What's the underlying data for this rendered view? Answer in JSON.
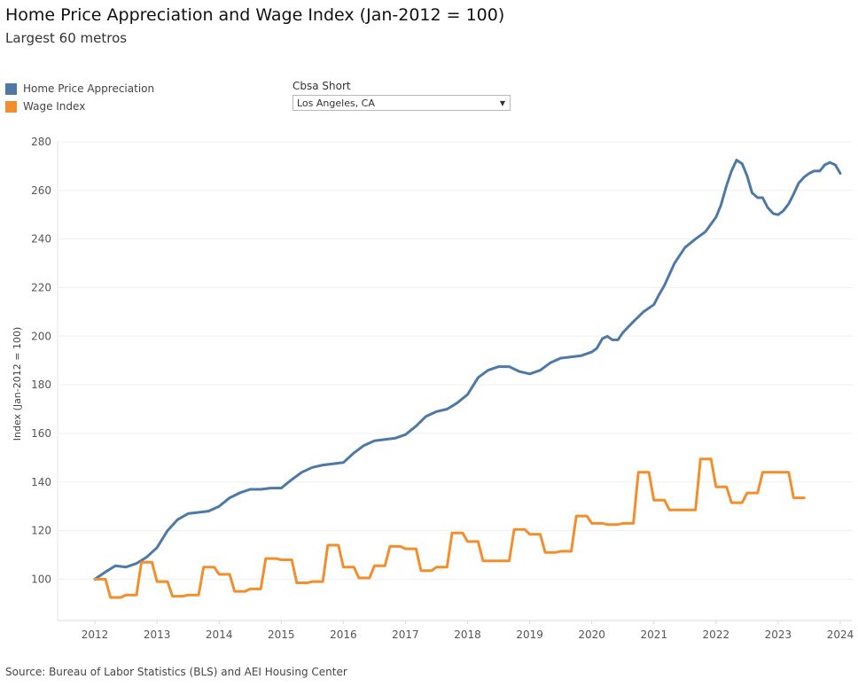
{
  "header": {
    "title": "Home Price Appreciation and Wage Index (Jan-2012 = 100)",
    "subtitle": "Largest 60 metros"
  },
  "legend": {
    "items": [
      {
        "label": "Home Price Appreciation",
        "color": "#4e79a7"
      },
      {
        "label": "Wage Index",
        "color": "#f28e2b"
      }
    ]
  },
  "filter": {
    "label": "Cbsa Short",
    "value": "Los Angeles, CA"
  },
  "footer": {
    "source": "Source: Bureau of Labor Statistics (BLS) and AEI Housing Center"
  },
  "chart_data": {
    "type": "line",
    "ylabel": "Index (Jan-2012 = 100)",
    "xlabel": "",
    "ylim": [
      83,
      280
    ],
    "xlim": [
      2011.4,
      2024.2
    ],
    "y_ticks": [
      100,
      120,
      140,
      160,
      180,
      200,
      220,
      240,
      260,
      280
    ],
    "x_ticks": [
      2012,
      2013,
      2014,
      2015,
      2016,
      2017,
      2018,
      2019,
      2020,
      2021,
      2022,
      2023,
      2024
    ],
    "grid": "horizontal",
    "series": [
      {
        "name": "Home Price Appreciation",
        "color": "#4e79a7",
        "points": [
          [
            2012.0,
            100.0
          ],
          [
            2012.17,
            103.0
          ],
          [
            2012.33,
            105.5
          ],
          [
            2012.5,
            105.0
          ],
          [
            2012.67,
            106.5
          ],
          [
            2012.83,
            109.0
          ],
          [
            2013.0,
            113.0
          ],
          [
            2013.17,
            120.0
          ],
          [
            2013.33,
            124.5
          ],
          [
            2013.5,
            127.0
          ],
          [
            2013.67,
            127.5
          ],
          [
            2013.83,
            128.0
          ],
          [
            2014.0,
            130.0
          ],
          [
            2014.17,
            133.5
          ],
          [
            2014.33,
            135.5
          ],
          [
            2014.5,
            137.0
          ],
          [
            2014.67,
            137.0
          ],
          [
            2014.83,
            137.5
          ],
          [
            2015.0,
            137.5
          ],
          [
            2015.17,
            141.0
          ],
          [
            2015.33,
            144.0
          ],
          [
            2015.5,
            146.0
          ],
          [
            2015.67,
            147.0
          ],
          [
            2015.83,
            147.5
          ],
          [
            2016.0,
            148.0
          ],
          [
            2016.17,
            152.0
          ],
          [
            2016.33,
            155.0
          ],
          [
            2016.5,
            157.0
          ],
          [
            2016.67,
            157.5
          ],
          [
            2016.83,
            158.0
          ],
          [
            2017.0,
            159.5
          ],
          [
            2017.17,
            163.0
          ],
          [
            2017.33,
            167.0
          ],
          [
            2017.5,
            169.0
          ],
          [
            2017.67,
            170.0
          ],
          [
            2017.83,
            172.5
          ],
          [
            2018.0,
            176.0
          ],
          [
            2018.17,
            183.0
          ],
          [
            2018.33,
            186.0
          ],
          [
            2018.5,
            187.5
          ],
          [
            2018.67,
            187.5
          ],
          [
            2018.83,
            185.5
          ],
          [
            2019.0,
            184.5
          ],
          [
            2019.17,
            186.0
          ],
          [
            2019.33,
            189.0
          ],
          [
            2019.5,
            191.0
          ],
          [
            2019.67,
            191.5
          ],
          [
            2019.83,
            192.0
          ],
          [
            2020.0,
            193.5
          ],
          [
            2020.08,
            195.0
          ],
          [
            2020.17,
            199.0
          ],
          [
            2020.25,
            200.0
          ],
          [
            2020.33,
            198.5
          ],
          [
            2020.42,
            198.5
          ],
          [
            2020.5,
            201.5
          ],
          [
            2020.67,
            206.0
          ],
          [
            2020.83,
            210.0
          ],
          [
            2021.0,
            213.0
          ],
          [
            2021.08,
            217.0
          ],
          [
            2021.17,
            221.0
          ],
          [
            2021.33,
            230.0
          ],
          [
            2021.5,
            236.5
          ],
          [
            2021.67,
            240.0
          ],
          [
            2021.83,
            243.0
          ],
          [
            2022.0,
            249.0
          ],
          [
            2022.08,
            254.0
          ],
          [
            2022.17,
            262.0
          ],
          [
            2022.25,
            268.0
          ],
          [
            2022.33,
            272.5
          ],
          [
            2022.42,
            271.0
          ],
          [
            2022.5,
            266.0
          ],
          [
            2022.58,
            259.0
          ],
          [
            2022.67,
            257.0
          ],
          [
            2022.75,
            257.0
          ],
          [
            2022.83,
            253.0
          ],
          [
            2022.92,
            250.5
          ],
          [
            2023.0,
            250.0
          ],
          [
            2023.08,
            251.5
          ],
          [
            2023.17,
            254.5
          ],
          [
            2023.25,
            258.5
          ],
          [
            2023.33,
            263.0
          ],
          [
            2023.42,
            265.5
          ],
          [
            2023.5,
            267.0
          ],
          [
            2023.58,
            268.0
          ],
          [
            2023.67,
            268.0
          ],
          [
            2023.75,
            270.5
          ],
          [
            2023.83,
            271.5
          ],
          [
            2023.92,
            270.5
          ],
          [
            2024.0,
            267.0
          ]
        ]
      },
      {
        "name": "Wage Index",
        "color": "#f28e2b",
        "points": [
          [
            2012.0,
            100.0
          ],
          [
            2012.17,
            100.0
          ],
          [
            2012.25,
            92.5
          ],
          [
            2012.42,
            92.5
          ],
          [
            2012.5,
            93.5
          ],
          [
            2012.67,
            93.5
          ],
          [
            2012.75,
            107.0
          ],
          [
            2012.92,
            107.0
          ],
          [
            2013.0,
            99.0
          ],
          [
            2013.17,
            99.0
          ],
          [
            2013.25,
            93.0
          ],
          [
            2013.42,
            93.0
          ],
          [
            2013.5,
            93.5
          ],
          [
            2013.67,
            93.5
          ],
          [
            2013.75,
            105.0
          ],
          [
            2013.92,
            105.0
          ],
          [
            2014.0,
            102.0
          ],
          [
            2014.17,
            102.0
          ],
          [
            2014.25,
            95.0
          ],
          [
            2014.42,
            95.0
          ],
          [
            2014.5,
            96.0
          ],
          [
            2014.67,
            96.0
          ],
          [
            2014.75,
            108.5
          ],
          [
            2014.92,
            108.5
          ],
          [
            2015.0,
            108.0
          ],
          [
            2015.17,
            108.0
          ],
          [
            2015.25,
            98.5
          ],
          [
            2015.42,
            98.5
          ],
          [
            2015.5,
            99.0
          ],
          [
            2015.67,
            99.0
          ],
          [
            2015.75,
            114.0
          ],
          [
            2015.92,
            114.0
          ],
          [
            2016.0,
            105.0
          ],
          [
            2016.17,
            105.0
          ],
          [
            2016.25,
            100.5
          ],
          [
            2016.42,
            100.5
          ],
          [
            2016.5,
            105.5
          ],
          [
            2016.67,
            105.5
          ],
          [
            2016.75,
            113.5
          ],
          [
            2016.92,
            113.5
          ],
          [
            2017.0,
            112.5
          ],
          [
            2017.17,
            112.5
          ],
          [
            2017.25,
            103.5
          ],
          [
            2017.42,
            103.5
          ],
          [
            2017.5,
            105.0
          ],
          [
            2017.67,
            105.0
          ],
          [
            2017.75,
            119.0
          ],
          [
            2017.92,
            119.0
          ],
          [
            2018.0,
            115.5
          ],
          [
            2018.17,
            115.5
          ],
          [
            2018.25,
            107.5
          ],
          [
            2018.67,
            107.5
          ],
          [
            2018.75,
            120.5
          ],
          [
            2018.92,
            120.5
          ],
          [
            2019.0,
            118.5
          ],
          [
            2019.17,
            118.5
          ],
          [
            2019.25,
            111.0
          ],
          [
            2019.42,
            111.0
          ],
          [
            2019.5,
            111.5
          ],
          [
            2019.67,
            111.5
          ],
          [
            2019.75,
            126.0
          ],
          [
            2019.92,
            126.0
          ],
          [
            2020.0,
            123.0
          ],
          [
            2020.17,
            123.0
          ],
          [
            2020.25,
            122.5
          ],
          [
            2020.42,
            122.5
          ],
          [
            2020.5,
            123.0
          ],
          [
            2020.67,
            123.0
          ],
          [
            2020.75,
            144.0
          ],
          [
            2020.92,
            144.0
          ],
          [
            2021.0,
            132.5
          ],
          [
            2021.17,
            132.5
          ],
          [
            2021.25,
            128.5
          ],
          [
            2021.67,
            128.5
          ],
          [
            2021.75,
            149.5
          ],
          [
            2021.92,
            149.5
          ],
          [
            2022.0,
            138.0
          ],
          [
            2022.17,
            138.0
          ],
          [
            2022.25,
            131.5
          ],
          [
            2022.42,
            131.5
          ],
          [
            2022.5,
            135.5
          ],
          [
            2022.67,
            135.5
          ],
          [
            2022.75,
            144.0
          ],
          [
            2023.17,
            144.0
          ],
          [
            2023.25,
            133.5
          ],
          [
            2023.42,
            133.5
          ]
        ]
      }
    ]
  }
}
